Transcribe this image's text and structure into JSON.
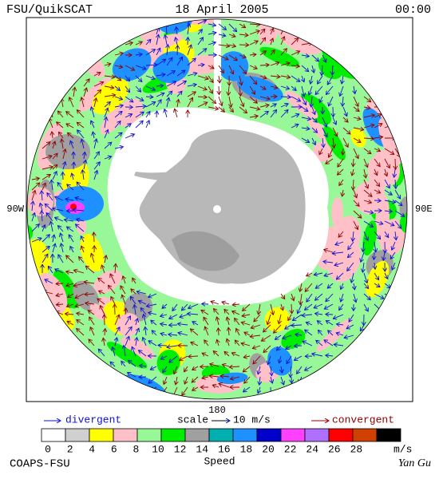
{
  "header": {
    "left": "FSU/QuikSCAT",
    "center": "18 April 2005",
    "right": "00:00"
  },
  "map": {
    "left_label": "90W",
    "right_label": "90E",
    "bottom_label": "180"
  },
  "legend": {
    "divergent": "divergent",
    "scale": "scale",
    "scale_value": "10 m/s",
    "convergent": "convergent"
  },
  "colorbar": {
    "ticks": [
      "0",
      "2",
      "4",
      "6",
      "8",
      "10",
      "12",
      "14",
      "16",
      "18",
      "20",
      "22",
      "24",
      "26",
      "28"
    ],
    "unit": "m/s",
    "title": "Speed"
  },
  "footer": {
    "left": "COAPS-FSU",
    "right": "Yan Gu"
  }
}
